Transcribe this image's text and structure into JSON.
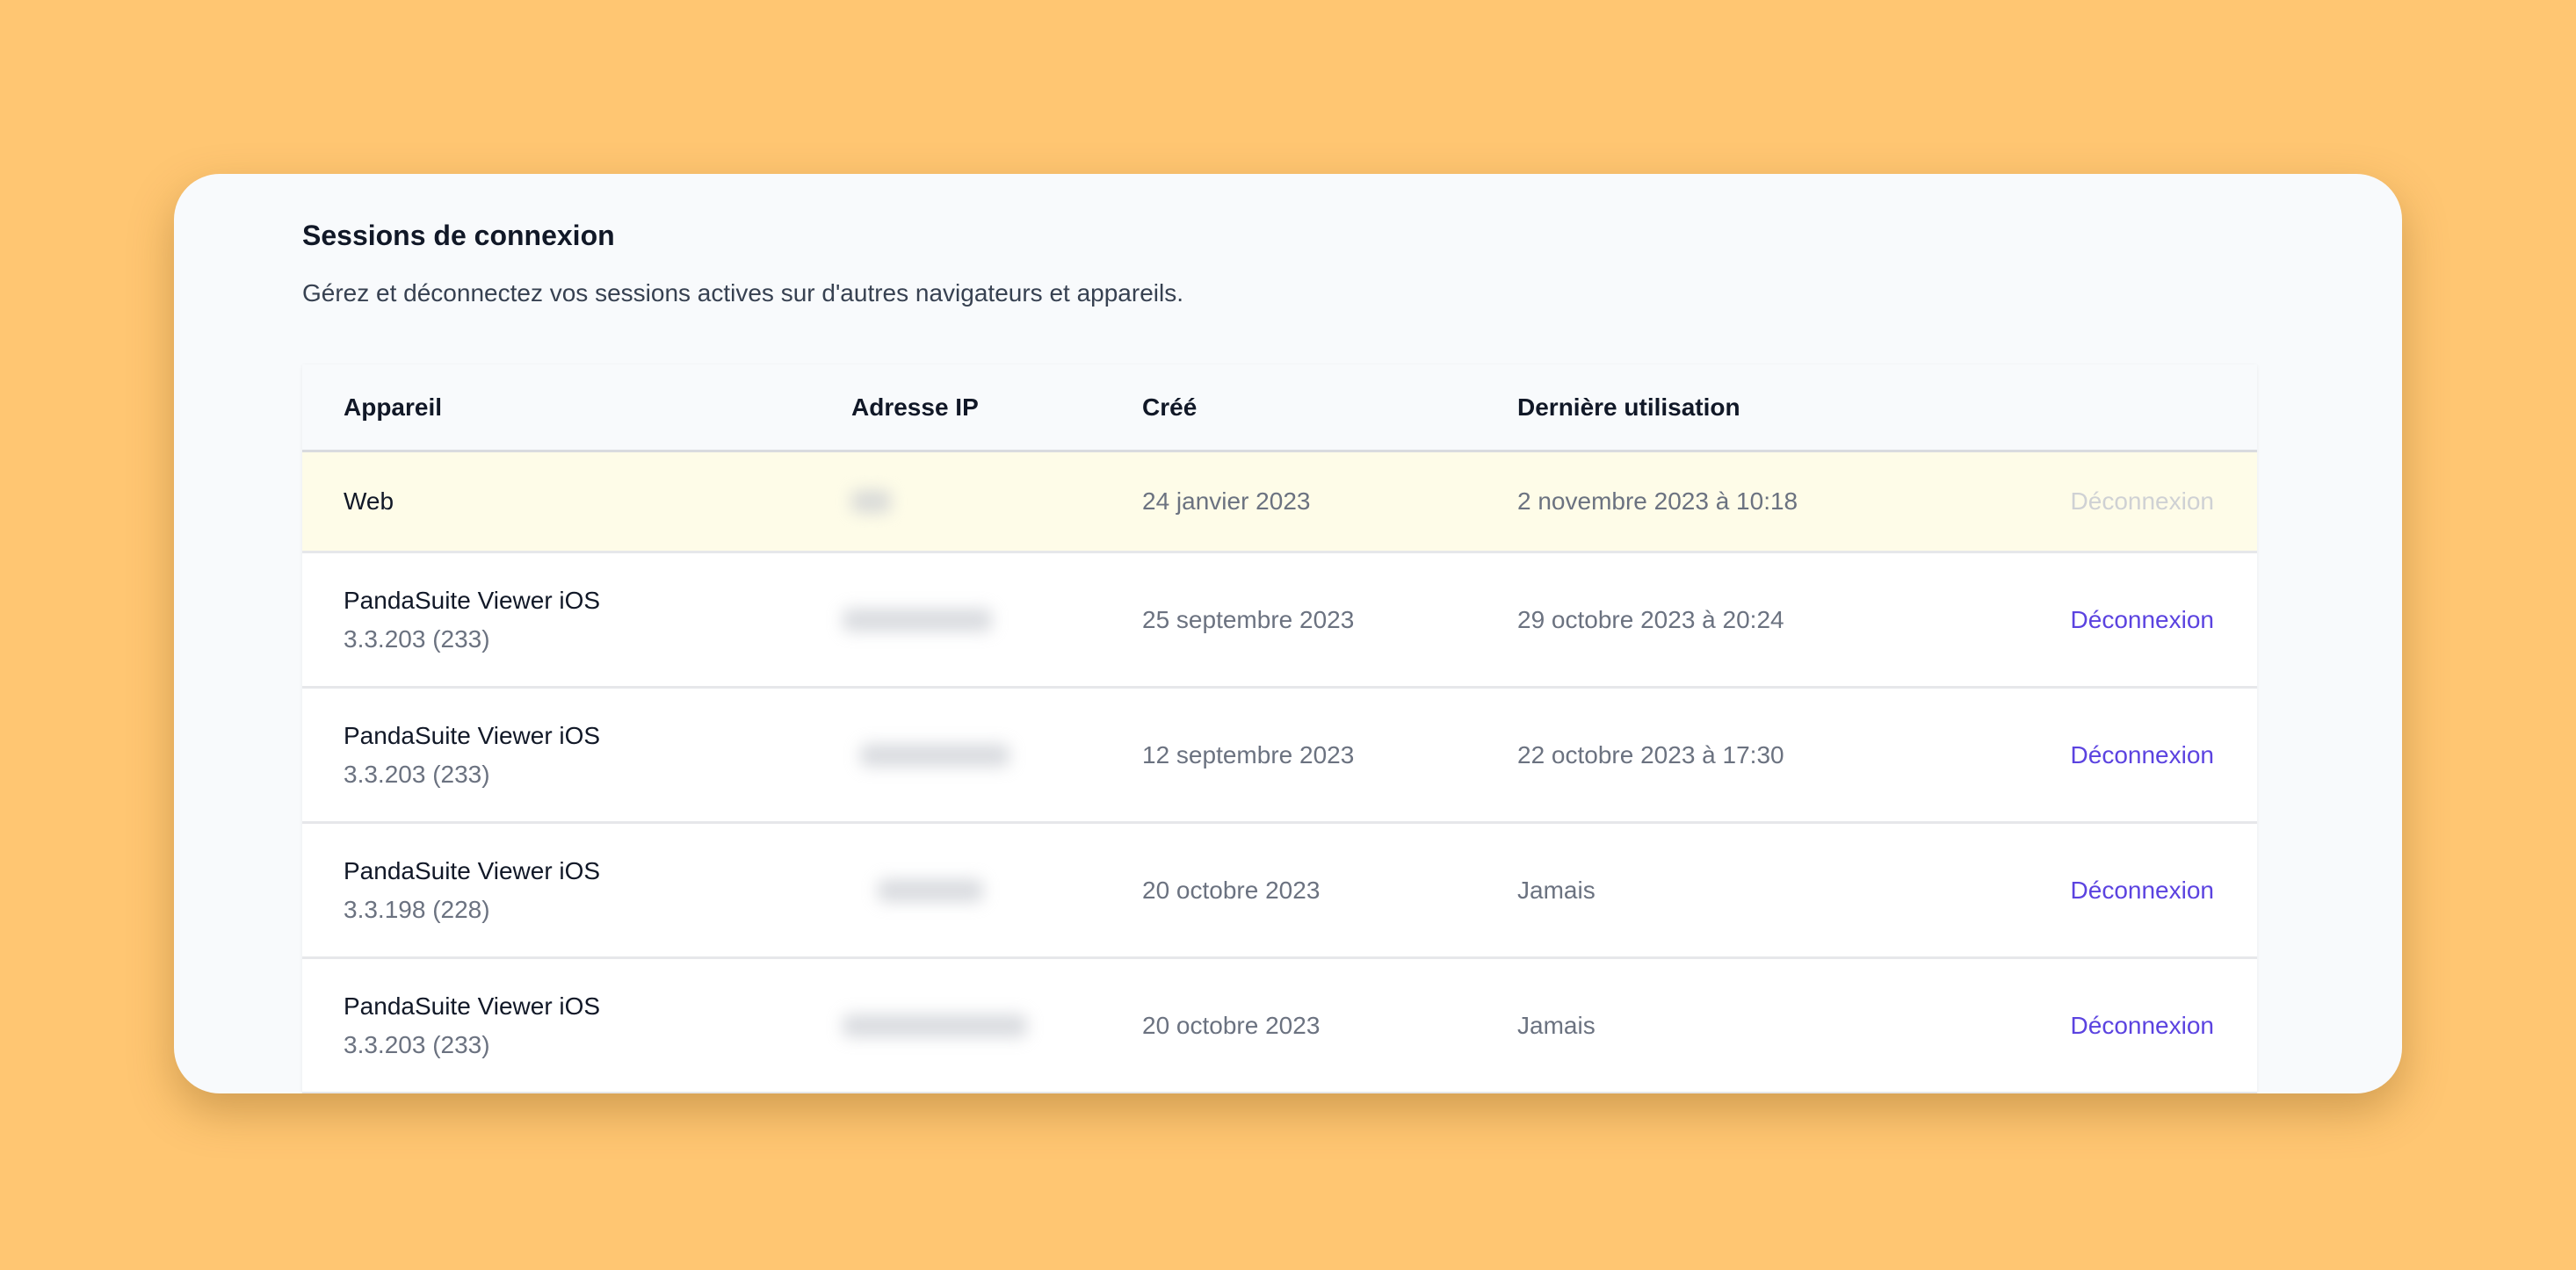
{
  "section": {
    "title": "Sessions de connexion",
    "subtitle": "Gérez et déconnectez vos sessions actives sur d'autres navigateurs et appareils."
  },
  "table": {
    "headers": [
      "Appareil",
      "Adresse IP",
      "Créé",
      "Dernière utilisation"
    ],
    "rows": [
      {
        "device": "Web",
        "version": "",
        "created": "24 janvier 2023",
        "last_used": "2 novembre 2023 à 10:18",
        "action": "Déconnexion",
        "current": true
      },
      {
        "device": "PandaSuite Viewer iOS",
        "version": "3.3.203 (233)",
        "created": "25 septembre 2023",
        "last_used": "29 octobre 2023 à 20:24",
        "action": "Déconnexion",
        "current": false
      },
      {
        "device": "PandaSuite Viewer iOS",
        "version": "3.3.203 (233)",
        "created": "12 septembre 2023",
        "last_used": "22 octobre 2023 à 17:30",
        "action": "Déconnexion",
        "current": false
      },
      {
        "device": "PandaSuite Viewer iOS",
        "version": "3.3.198 (228)",
        "created": "20 octobre 2023",
        "last_used": "Jamais",
        "action": "Déconnexion",
        "current": false
      },
      {
        "device": "PandaSuite Viewer iOS",
        "version": "3.3.203 (233)",
        "created": "20 octobre 2023",
        "last_used": "Jamais",
        "action": "Déconnexion",
        "current": false
      }
    ]
  },
  "colors": {
    "background": "#ffc672",
    "accent": "#5b43e0",
    "current_row": "#fefce8"
  }
}
